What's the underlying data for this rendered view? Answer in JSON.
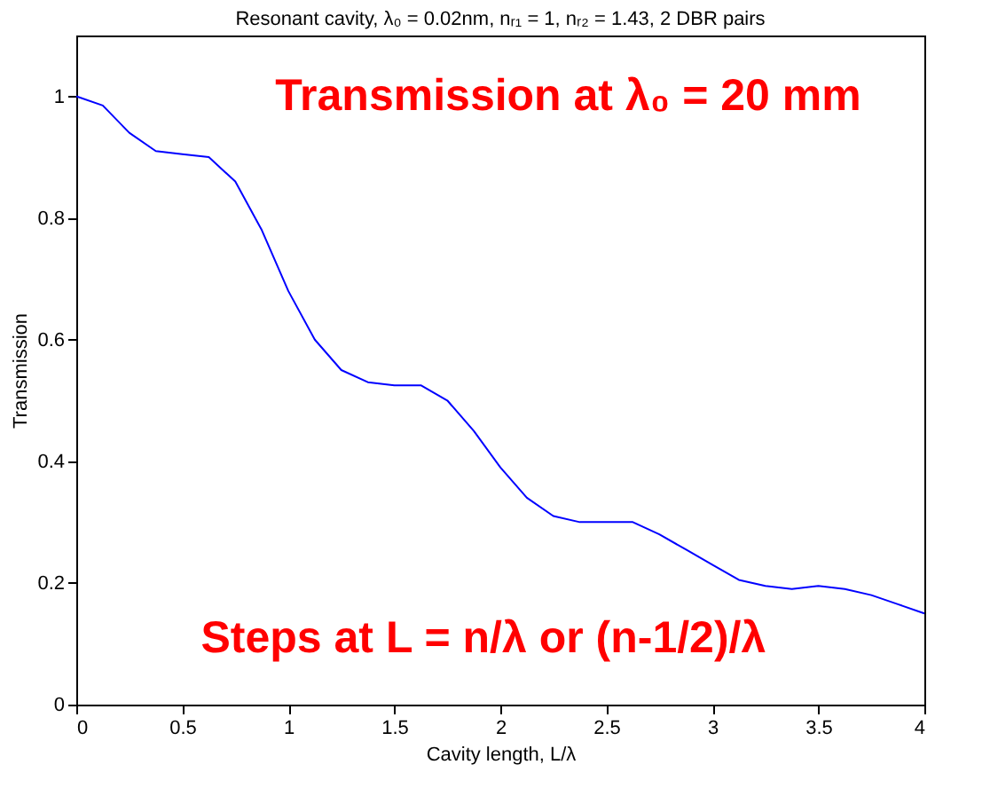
{
  "chart_data": {
    "type": "line",
    "title": "Resonant cavity, λ₀ = 0.02nm, nᵣ₁ = 1, nᵣ₂ = 1.43, 2 DBR pairs",
    "xlabel": "Cavity length, L/λ",
    "ylabel": "Transmission",
    "annotations": [
      "Transmission at λ₀ = 20 mm",
      "Steps at L = n/λ or (n-1/2)/λ"
    ],
    "x": [
      0,
      0.125,
      0.25,
      0.375,
      0.5,
      0.625,
      0.75,
      0.875,
      1.0,
      1.125,
      1.25,
      1.375,
      1.5,
      1.625,
      1.75,
      1.875,
      2.0,
      2.125,
      2.25,
      2.375,
      2.5,
      2.625,
      2.75,
      2.875,
      3.0,
      3.125,
      3.25,
      3.375,
      3.5,
      3.625,
      3.75,
      3.875,
      4.0
    ],
    "series": [
      {
        "color": "#0000ff",
        "values": [
          1.0,
          0.985,
          0.94,
          0.91,
          0.905,
          0.9,
          0.86,
          0.78,
          0.68,
          0.6,
          0.55,
          0.53,
          0.525,
          0.525,
          0.5,
          0.45,
          0.39,
          0.34,
          0.31,
          0.3,
          0.3,
          0.3,
          0.28,
          0.255,
          0.23,
          0.205,
          0.195,
          0.19,
          0.195,
          0.19,
          0.18,
          0.165,
          0.15
        ]
      }
    ],
    "xlim": [
      0,
      4
    ],
    "xticks": [
      0,
      0.5,
      1,
      1.5,
      2,
      2.5,
      3,
      3.5,
      4
    ],
    "ylim": [
      0,
      1.1
    ],
    "yticks": [
      0,
      0.2,
      0.4,
      0.6,
      0.8,
      1
    ],
    "grid": false
  }
}
